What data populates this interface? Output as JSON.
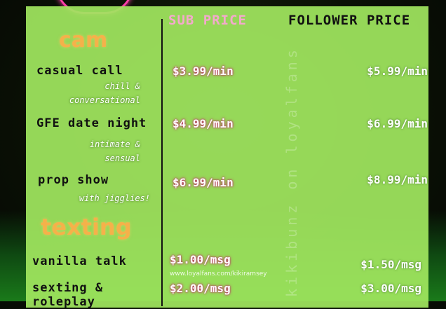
{
  "headers": {
    "sub": "SUB PRICE",
    "follower": "FOLLOWER PRICE"
  },
  "sections": [
    {
      "title": "cam",
      "items": [
        {
          "name": "casual call",
          "desc1": "chill &",
          "desc2": "conversational",
          "sub": "$3.99/min",
          "follower": "$5.99/min"
        },
        {
          "name": "GFE date night",
          "desc1": "intimate &",
          "desc2": "sensual",
          "sub": "$4.99/min",
          "follower": "$6.99/min"
        },
        {
          "name": "prop show",
          "desc1": "with jigglies!",
          "sub": "$6.99/min",
          "follower": "$8.99/min"
        }
      ]
    },
    {
      "title": "texting",
      "items": [
        {
          "name": "vanilla talk",
          "sub": "$1.00/msg",
          "follower": "$1.50/msg"
        },
        {
          "name": "sexting &",
          "name2": "roleplay",
          "sub": "$2.00/msg",
          "follower": "$3.00/msg"
        }
      ]
    }
  ],
  "watermark": "kikibunz on loyalfans",
  "url": "www.loyalfans.com/kikiramsey",
  "colors": {
    "panel": "#a0e65f",
    "section": "#f5b14a",
    "sub_header": "#f4a9cc",
    "neon": "#ff3fa8"
  }
}
